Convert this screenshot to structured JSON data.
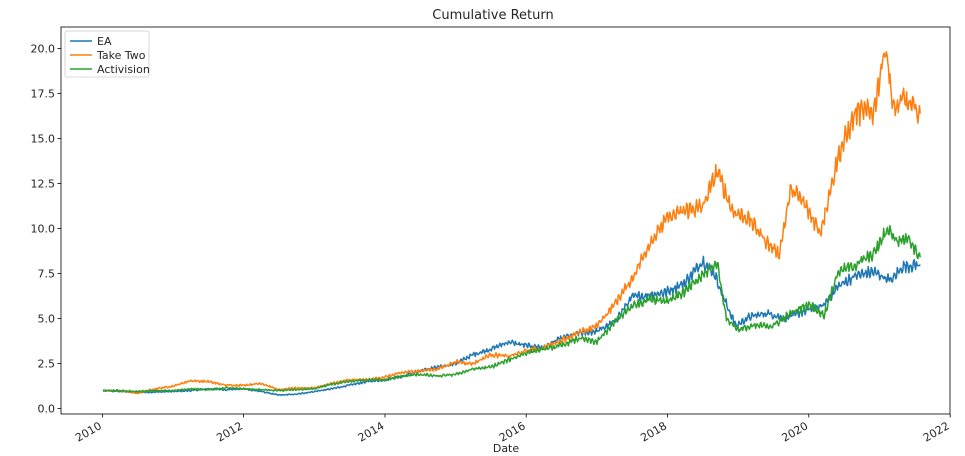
{
  "chart_data": {
    "type": "line",
    "title": "Cumulative Return",
    "xlabel": "Date",
    "ylabel": "",
    "x_type": "date",
    "xlim": [
      "2009-06-01",
      "2021-12-31"
    ],
    "ylim": [
      -0.3,
      21.2
    ],
    "grid": false,
    "legend_position": "top-left",
    "x_ticks": [
      {
        "value": "2010-01-01",
        "label": "2010"
      },
      {
        "value": "2012-01-01",
        "label": "2012"
      },
      {
        "value": "2014-01-01",
        "label": "2014"
      },
      {
        "value": "2016-01-01",
        "label": "2016"
      },
      {
        "value": "2018-01-01",
        "label": "2018"
      },
      {
        "value": "2020-01-01",
        "label": "2020"
      },
      {
        "value": "2022-01-01",
        "label": "2022"
      }
    ],
    "y_ticks": [
      {
        "value": 0,
        "label": "0.0"
      },
      {
        "value": 2.5,
        "label": "2.5"
      },
      {
        "value": 5,
        "label": "5.0"
      },
      {
        "value": 7.5,
        "label": "7.5"
      },
      {
        "value": 10,
        "label": "10.0"
      },
      {
        "value": 12.5,
        "label": "12.5"
      },
      {
        "value": 15,
        "label": "15.0"
      },
      {
        "value": 17.5,
        "label": "17.5"
      },
      {
        "value": 20,
        "label": "20.0"
      }
    ],
    "series": [
      {
        "name": "EA",
        "color": "#1f77b4",
        "points": [
          [
            "2010-01-04",
            1.0
          ],
          [
            "2010-04-01",
            0.95
          ],
          [
            "2010-07-01",
            0.9
          ],
          [
            "2010-10-01",
            0.92
          ],
          [
            "2011-01-01",
            0.95
          ],
          [
            "2011-04-01",
            1.0
          ],
          [
            "2011-07-01",
            1.1
          ],
          [
            "2011-10-01",
            1.05
          ],
          [
            "2012-01-01",
            1.1
          ],
          [
            "2012-04-01",
            0.95
          ],
          [
            "2012-07-01",
            0.75
          ],
          [
            "2012-10-01",
            0.8
          ],
          [
            "2013-01-01",
            0.95
          ],
          [
            "2013-04-01",
            1.1
          ],
          [
            "2013-07-01",
            1.3
          ],
          [
            "2013-10-01",
            1.5
          ],
          [
            "2014-01-01",
            1.6
          ],
          [
            "2014-04-01",
            1.8
          ],
          [
            "2014-07-01",
            2.1
          ],
          [
            "2014-10-01",
            2.3
          ],
          [
            "2015-01-01",
            2.5
          ],
          [
            "2015-04-01",
            3.0
          ],
          [
            "2015-07-01",
            3.3
          ],
          [
            "2015-10-01",
            3.7
          ],
          [
            "2016-01-01",
            3.5
          ],
          [
            "2016-04-01",
            3.4
          ],
          [
            "2016-07-01",
            3.9
          ],
          [
            "2016-10-01",
            4.2
          ],
          [
            "2017-01-01",
            4.3
          ],
          [
            "2017-04-01",
            4.8
          ],
          [
            "2017-07-01",
            6.2
          ],
          [
            "2017-10-01",
            6.3
          ],
          [
            "2018-01-01",
            6.5
          ],
          [
            "2018-04-01",
            7.0
          ],
          [
            "2018-07-01",
            8.2
          ],
          [
            "2018-09-01",
            7.5
          ],
          [
            "2018-10-15",
            6.2
          ],
          [
            "2018-12-20",
            4.6
          ],
          [
            "2019-03-01",
            5.1
          ],
          [
            "2019-06-01",
            5.3
          ],
          [
            "2019-09-01",
            5.0
          ],
          [
            "2019-12-01",
            5.4
          ],
          [
            "2020-03-15",
            5.7
          ],
          [
            "2020-06-01",
            6.8
          ],
          [
            "2020-09-01",
            7.4
          ],
          [
            "2020-12-01",
            7.6
          ],
          [
            "2021-03-01",
            7.1
          ],
          [
            "2021-05-01",
            7.9
          ],
          [
            "2021-07-30",
            8.0
          ]
        ]
      },
      {
        "name": "Take Two",
        "color": "#ff7f0e",
        "points": [
          [
            "2010-01-04",
            1.0
          ],
          [
            "2010-04-01",
            1.0
          ],
          [
            "2010-07-01",
            0.85
          ],
          [
            "2010-10-01",
            1.1
          ],
          [
            "2011-01-01",
            1.25
          ],
          [
            "2011-04-01",
            1.55
          ],
          [
            "2011-07-01",
            1.5
          ],
          [
            "2011-10-01",
            1.3
          ],
          [
            "2012-01-01",
            1.3
          ],
          [
            "2012-04-01",
            1.4
          ],
          [
            "2012-07-01",
            1.05
          ],
          [
            "2012-10-01",
            1.15
          ],
          [
            "2013-01-01",
            1.15
          ],
          [
            "2013-04-01",
            1.4
          ],
          [
            "2013-07-01",
            1.6
          ],
          [
            "2013-10-01",
            1.6
          ],
          [
            "2014-01-01",
            1.75
          ],
          [
            "2014-04-01",
            2.0
          ],
          [
            "2014-07-01",
            2.1
          ],
          [
            "2014-10-01",
            2.2
          ],
          [
            "2015-01-01",
            2.6
          ],
          [
            "2015-04-01",
            2.5
          ],
          [
            "2015-07-01",
            3.0
          ],
          [
            "2015-10-01",
            2.9
          ],
          [
            "2016-01-01",
            3.2
          ],
          [
            "2016-04-01",
            3.4
          ],
          [
            "2016-07-01",
            3.8
          ],
          [
            "2016-10-01",
            4.2
          ],
          [
            "2017-01-01",
            4.6
          ],
          [
            "2017-04-01",
            5.8
          ],
          [
            "2017-07-01",
            7.2
          ],
          [
            "2017-10-01",
            9.2
          ],
          [
            "2018-01-01",
            10.6
          ],
          [
            "2018-04-01",
            11.0
          ],
          [
            "2018-07-01",
            11.2
          ],
          [
            "2018-09-15",
            13.2
          ],
          [
            "2018-12-01",
            11.0
          ],
          [
            "2019-03-01",
            10.5
          ],
          [
            "2019-06-01",
            9.2
          ],
          [
            "2019-08-01",
            8.6
          ],
          [
            "2019-10-01",
            12.2
          ],
          [
            "2019-12-01",
            11.5
          ],
          [
            "2020-03-01",
            9.8
          ],
          [
            "2020-06-01",
            14.0
          ],
          [
            "2020-09-01",
            16.5
          ],
          [
            "2020-12-01",
            16.5
          ],
          [
            "2021-02-01",
            20.2
          ],
          [
            "2021-03-15",
            16.5
          ],
          [
            "2021-05-01",
            17.2
          ],
          [
            "2021-07-30",
            16.4
          ]
        ]
      },
      {
        "name": "Activision",
        "color": "#2ca02c",
        "points": [
          [
            "2010-01-04",
            1.0
          ],
          [
            "2010-04-01",
            1.0
          ],
          [
            "2010-07-01",
            0.95
          ],
          [
            "2010-10-01",
            1.0
          ],
          [
            "2011-01-01",
            1.0
          ],
          [
            "2011-04-01",
            1.1
          ],
          [
            "2011-07-01",
            1.05
          ],
          [
            "2011-10-01",
            1.15
          ],
          [
            "2012-01-01",
            1.1
          ],
          [
            "2012-04-01",
            1.05
          ],
          [
            "2012-07-01",
            1.0
          ],
          [
            "2012-10-01",
            1.05
          ],
          [
            "2013-01-01",
            1.1
          ],
          [
            "2013-04-01",
            1.35
          ],
          [
            "2013-07-01",
            1.5
          ],
          [
            "2013-10-01",
            1.6
          ],
          [
            "2014-01-01",
            1.6
          ],
          [
            "2014-04-01",
            1.8
          ],
          [
            "2014-07-01",
            1.9
          ],
          [
            "2014-10-01",
            1.8
          ],
          [
            "2015-01-01",
            1.9
          ],
          [
            "2015-04-01",
            2.2
          ],
          [
            "2015-07-01",
            2.3
          ],
          [
            "2015-10-01",
            2.7
          ],
          [
            "2016-01-01",
            3.1
          ],
          [
            "2016-04-01",
            3.3
          ],
          [
            "2016-07-01",
            3.5
          ],
          [
            "2016-10-01",
            3.9
          ],
          [
            "2017-01-01",
            3.7
          ],
          [
            "2017-04-01",
            4.8
          ],
          [
            "2017-07-01",
            5.7
          ],
          [
            "2017-10-01",
            6.1
          ],
          [
            "2018-01-01",
            6.0
          ],
          [
            "2018-04-01",
            6.5
          ],
          [
            "2018-07-01",
            7.4
          ],
          [
            "2018-09-15",
            8.1
          ],
          [
            "2018-11-01",
            5.0
          ],
          [
            "2019-01-01",
            4.4
          ],
          [
            "2019-04-01",
            4.6
          ],
          [
            "2019-07-01",
            4.6
          ],
          [
            "2019-10-01",
            5.3
          ],
          [
            "2020-01-01",
            5.8
          ],
          [
            "2020-03-20",
            5.2
          ],
          [
            "2020-06-01",
            7.6
          ],
          [
            "2020-09-01",
            8.0
          ],
          [
            "2020-12-01",
            8.6
          ],
          [
            "2021-02-15",
            10.0
          ],
          [
            "2021-04-01",
            9.3
          ],
          [
            "2021-06-01",
            9.5
          ],
          [
            "2021-07-30",
            8.4
          ]
        ]
      }
    ]
  }
}
